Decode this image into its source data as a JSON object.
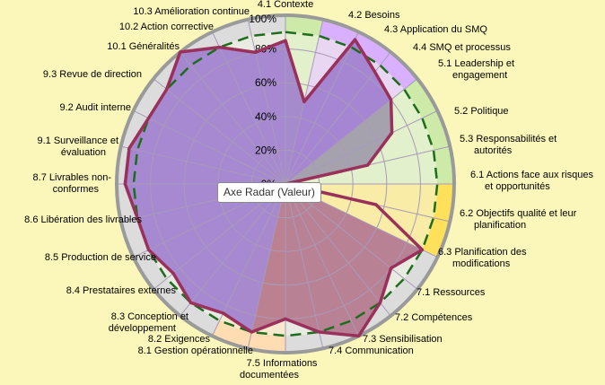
{
  "colors": {
    "background": "#fbf6b9",
    "rim_gray": "#dcdcdc",
    "rim_lilac": "#d9b0ff",
    "rim_green": "#cdeaa9",
    "rim_yellow": "#ffe05a",
    "rim_peach": "#ffdcb1",
    "data_border": "#99315b",
    "target_line": "#1d6d1d",
    "purple_fill": "#9a78cc",
    "red_fill": "#b06f86"
  },
  "tooltip": "Axe Radar (Valeur)",
  "chart_data": {
    "type": "radar",
    "title": "",
    "axis_ticks": [
      "0%",
      "20%",
      "40%",
      "60%",
      "80%",
      "100%"
    ],
    "range": [
      0,
      100
    ],
    "categories": [
      "4.1 Contexte",
      "4.2 Besoins",
      "4.3 Application du SMQ",
      "4.4 SMQ et processus",
      "5.1 Leadership et engagement",
      "5.2 Politique",
      "5.3 Responsabilités et autorités",
      "6.1 Actions face aux risques et opportunités",
      "6.2 Objectifs qualité et leur planification",
      "6.3 Planification des modifications",
      "7.1 Ressources",
      "7.2 Compétences",
      "7.3 Sensibilisation",
      "7.4 Communication",
      "7.5 Informations documentées",
      "8.1 Gestion opérationnelle",
      "8.2 Exigences",
      "8.3 Conception et développement",
      "8.4 Prestataires externes",
      "8.5 Production de service",
      "8.6 Libération des livrables",
      "8.7 Livrables non-conformes",
      "9.1 Surveillance et évaluation",
      "9.2 Audit interne",
      "9.3 Revue de direction",
      "10.1 Généralités",
      "10.2 Action corrective",
      "10.3  Amélioration continue"
    ],
    "series": [
      {
        "values": [
          85,
          50,
          95,
          85,
          80,
          70,
          50,
          0,
          55,
          90,
          80,
          90,
          100,
          90,
          80,
          90,
          85,
          90,
          85,
          90,
          90,
          95,
          95,
          90,
          90,
          100,
          90,
          80
        ]
      },
      {
        "values": [
          90,
          90,
          90,
          90,
          90,
          90,
          90,
          90,
          90,
          90,
          90,
          90,
          90,
          90,
          90,
          90,
          90,
          90,
          90,
          90,
          90,
          90,
          90,
          90,
          90,
          90,
          90,
          90
        ]
      }
    ],
    "sector_colors": [
      "green",
      "lilac",
      "lilac",
      "lilac",
      "green",
      "green",
      "green",
      "yellow",
      "yellow",
      "gray",
      "gray",
      "gray",
      "gray",
      "gray",
      "peach",
      "peach",
      "gray",
      "gray",
      "gray",
      "gray",
      "gray",
      "gray",
      "gray",
      "gray",
      "gray",
      "gray",
      "gray",
      "gray"
    ],
    "fill_regions": [
      {
        "from": 0,
        "to": 4,
        "color": "purple"
      },
      {
        "from": 4,
        "to": 7,
        "color": "gray"
      },
      {
        "from": 9,
        "to": 15,
        "color": "red"
      },
      {
        "from": 15,
        "to": 28,
        "color": "purple"
      }
    ]
  }
}
